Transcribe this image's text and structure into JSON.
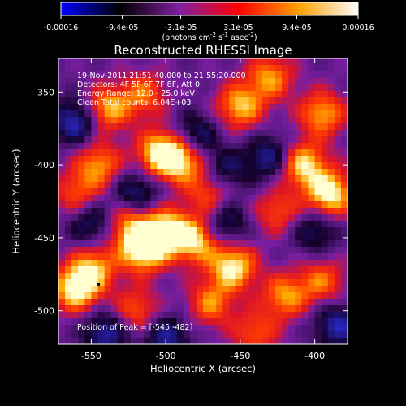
{
  "chart_data": {
    "type": "heatmap",
    "title": "Reconstructed RHESSI Image",
    "xlabel": "Heliocentric X (arcsec)",
    "ylabel": "Heliocentric Y (arcsec)",
    "xlim": [
      -572,
      -378
    ],
    "ylim": [
      -523,
      -327
    ],
    "x_ticks": [
      "-550",
      "-500",
      "-450",
      "-400"
    ],
    "x_tick_values": [
      -550,
      -500,
      -450,
      -400
    ],
    "y_ticks": [
      "-350",
      "-400",
      "-450",
      "-500"
    ],
    "y_tick_values": [
      -350,
      -400,
      -450,
      -500
    ],
    "colorbar": {
      "ticks": [
        "-0.00016",
        "-9.4e-05",
        "-3.1e-05",
        "3.1e-05",
        "9.4e-05",
        "0.00016"
      ],
      "tick_values": [
        -0.00016,
        -9.4e-05,
        -3.1e-05,
        3.1e-05,
        9.4e-05,
        0.00016
      ],
      "range": [
        -0.00016,
        0.00016
      ],
      "units_line1": "(photons cm",
      "units_exp1": "-2",
      "units_mid": " s",
      "units_exp2": "-1",
      "units_mid2": " asec",
      "units_exp3": "-2",
      "units_end": ")",
      "colors": [
        "#0000ff",
        "#000000",
        "#8020a0",
        "#ff0000",
        "#ffa000",
        "#ffffff"
      ]
    },
    "annotations": {
      "time": "19-Nov-2011 21:51:40.000 to 21:55:20.000",
      "detectors": "Detectors: 4F 5F 6F 7F 8F, Att 0",
      "energy": "Energy Range: 12.0 - 25.0 keV",
      "clean": "Clean     Total counts: 6.04E+03",
      "peak": "Position of Peak = [-545,-482]"
    },
    "peak_position": [
      -545,
      -482
    ],
    "blobs": [
      {
        "x": -503,
        "y": -392,
        "v": 0.95
      },
      {
        "x": -488,
        "y": -398,
        "v": 0.7
      },
      {
        "x": -515,
        "y": -458,
        "v": 1.0
      },
      {
        "x": -500,
        "y": -445,
        "v": 0.85
      },
      {
        "x": -480,
        "y": -452,
        "v": 0.8
      },
      {
        "x": -525,
        "y": -440,
        "v": 0.6
      },
      {
        "x": -545,
        "y": -400,
        "v": 0.65
      },
      {
        "x": -560,
        "y": -420,
        "v": 0.5
      },
      {
        "x": -560,
        "y": -485,
        "v": 0.95
      },
      {
        "x": -548,
        "y": -470,
        "v": 0.65
      },
      {
        "x": -520,
        "y": -500,
        "v": 0.55
      },
      {
        "x": -540,
        "y": -362,
        "v": 0.75
      },
      {
        "x": -515,
        "y": -352,
        "v": 0.55
      },
      {
        "x": -450,
        "y": -360,
        "v": 0.75
      },
      {
        "x": -430,
        "y": -340,
        "v": 0.65
      },
      {
        "x": -395,
        "y": -365,
        "v": 0.7
      },
      {
        "x": -408,
        "y": -400,
        "v": 0.85
      },
      {
        "x": -390,
        "y": -420,
        "v": 0.95
      },
      {
        "x": -425,
        "y": -432,
        "v": 0.5
      },
      {
        "x": -455,
        "y": -470,
        "v": 0.9
      },
      {
        "x": -420,
        "y": -490,
        "v": 0.65
      },
      {
        "x": -470,
        "y": -495,
        "v": 0.6
      },
      {
        "x": -440,
        "y": -515,
        "v": 0.5
      },
      {
        "x": -395,
        "y": -480,
        "v": 0.55
      },
      {
        "x": -470,
        "y": -420,
        "v": 0.55
      },
      {
        "x": -560,
        "y": -370,
        "v": -0.7
      },
      {
        "x": -520,
        "y": -420,
        "v": -0.55
      },
      {
        "x": -540,
        "y": -515,
        "v": -0.6
      },
      {
        "x": -460,
        "y": -440,
        "v": -0.5
      },
      {
        "x": -430,
        "y": -395,
        "v": -0.55
      },
      {
        "x": -480,
        "y": -380,
        "v": -0.5
      },
      {
        "x": -500,
        "y": -518,
        "v": -0.55
      },
      {
        "x": -400,
        "y": -445,
        "v": -0.45
      },
      {
        "x": -385,
        "y": -510,
        "v": -0.6
      },
      {
        "x": -550,
        "y": -440,
        "v": -0.5
      },
      {
        "x": -460,
        "y": -405,
        "v": -0.45
      }
    ]
  }
}
